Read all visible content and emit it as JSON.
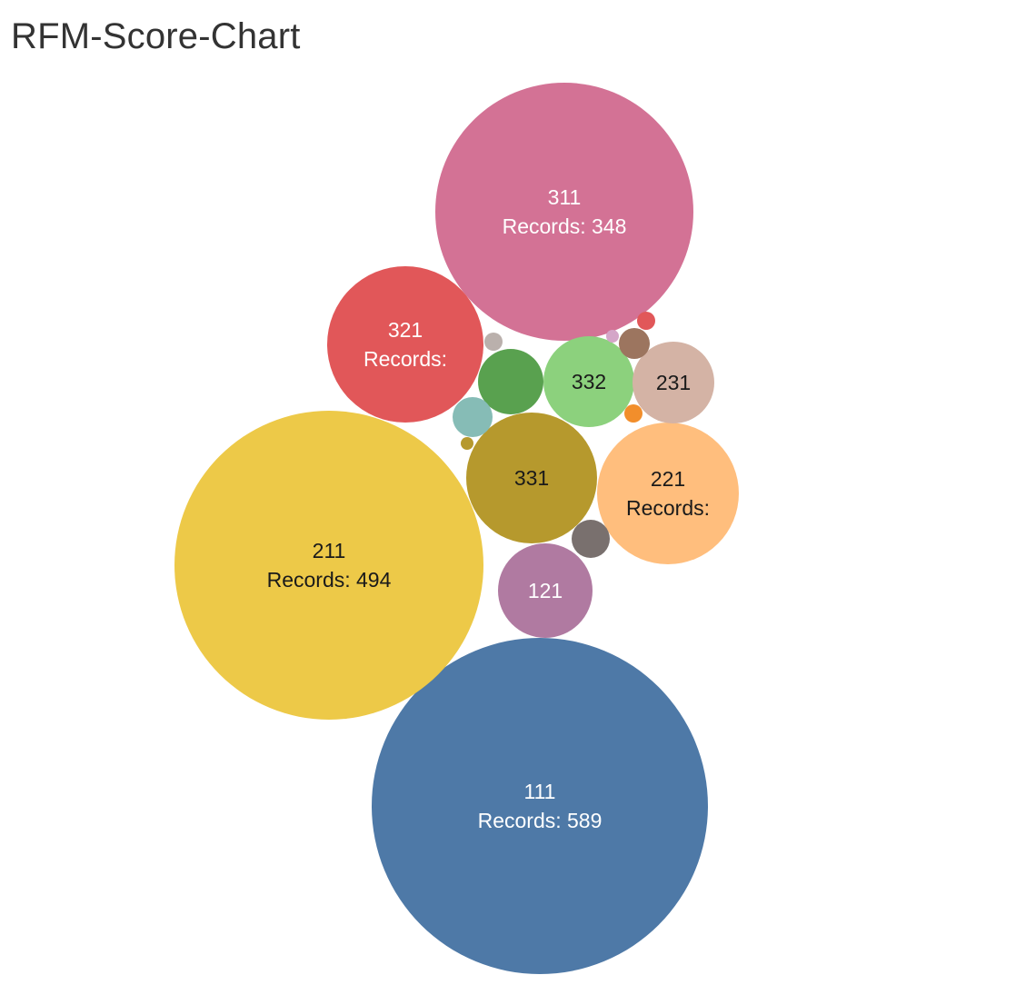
{
  "chart_data": {
    "type": "bubble",
    "title": "RFM-Score-Chart",
    "label_prefix": "Records: ",
    "bubbles": [
      {
        "id": "b-111",
        "label": "111",
        "records": 589,
        "records_text": "Records: 589",
        "color": "#4e79a7",
        "text_color": "#ffffff"
      },
      {
        "id": "b-211",
        "label": "211",
        "records": 494,
        "records_text": "Records: 494",
        "color": "#edc948",
        "text_color": "#1a1a1a"
      },
      {
        "id": "b-311",
        "label": "311",
        "records": 348,
        "records_text": "Records: 348",
        "color": "#d37295",
        "text_color": "#ffffff"
      },
      {
        "id": "b-321",
        "label": "321",
        "records_text": "Records:",
        "color": "#e15759",
        "text_color": "#ffffff"
      },
      {
        "id": "b-221",
        "label": "221",
        "records_text": "Records:",
        "color": "#ffbe7d",
        "text_color": "#1a1a1a"
      },
      {
        "id": "b-331",
        "label": "331",
        "color": "#b6992d",
        "text_color": "#1a1a1a"
      },
      {
        "id": "b-332",
        "label": "332",
        "color": "#8cd17d",
        "text_color": "#1a1a1a"
      },
      {
        "id": "b-231",
        "label": "231",
        "color": "#d4b3a5",
        "text_color": "#1a1a1a"
      },
      {
        "id": "b-121",
        "label": "121",
        "color": "#b07aa1",
        "text_color": "#ffffff"
      },
      {
        "id": "b-small-green",
        "label": "",
        "color": "#59a14f"
      },
      {
        "id": "b-small-teal",
        "label": "",
        "color": "#86bcb6"
      },
      {
        "id": "b-small-gray",
        "label": "",
        "color": "#79706e"
      },
      {
        "id": "b-small-brown",
        "label": "",
        "color": "#9c755f"
      },
      {
        "id": "b-tiny-taupe",
        "label": "",
        "color": "#bab0ac"
      },
      {
        "id": "b-tiny-red",
        "label": "",
        "color": "#e15759"
      },
      {
        "id": "b-tiny-orange",
        "label": "",
        "color": "#f28e2b"
      },
      {
        "id": "b-tiny-olive",
        "label": "",
        "color": "#b6992d"
      },
      {
        "id": "b-tiny-lilac",
        "label": "",
        "color": "#d4a6c8"
      }
    ]
  }
}
